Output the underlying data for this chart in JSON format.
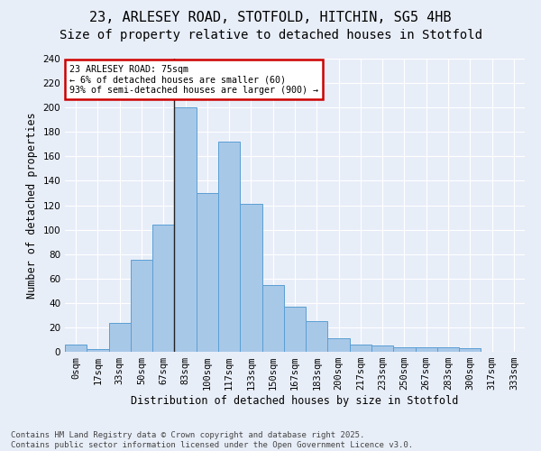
{
  "title_line1": "23, ARLESEY ROAD, STOTFOLD, HITCHIN, SG5 4HB",
  "title_line2": "Size of property relative to detached houses in Stotfold",
  "xlabel": "Distribution of detached houses by size in Stotfold",
  "ylabel": "Number of detached properties",
  "bar_color": "#a8c8e8",
  "bar_edge_color": "#5a9fd4",
  "background_color": "#e8eef8",
  "annotation_title": "23 ARLESEY ROAD: 75sqm",
  "annotation_line2": "← 6% of detached houses are smaller (60)",
  "annotation_line3": "93% of semi-detached houses are larger (900) →",
  "annotation_box_color": "#ffffff",
  "annotation_border_color": "#cc0000",
  "vline_x_idx": 4.5,
  "footer": "Contains HM Land Registry data © Crown copyright and database right 2025.\nContains public sector information licensed under the Open Government Licence v3.0.",
  "categories": [
    "0sqm",
    "17sqm",
    "33sqm",
    "50sqm",
    "67sqm",
    "83sqm",
    "100sqm",
    "117sqm",
    "133sqm",
    "150sqm",
    "167sqm",
    "183sqm",
    "200sqm",
    "217sqm",
    "233sqm",
    "250sqm",
    "267sqm",
    "283sqm",
    "300sqm",
    "317sqm",
    "333sqm"
  ],
  "values": [
    6,
    2,
    24,
    75,
    104,
    200,
    130,
    172,
    121,
    55,
    37,
    25,
    11,
    6,
    5,
    4,
    4,
    4,
    3,
    0,
    0
  ],
  "ylim": [
    0,
    240
  ],
  "yticks": [
    0,
    20,
    40,
    60,
    80,
    100,
    120,
    140,
    160,
    180,
    200,
    220,
    240
  ],
  "grid_color": "#ffffff",
  "title_fontsize": 11,
  "subtitle_fontsize": 10,
  "axis_label_fontsize": 8.5,
  "tick_fontsize": 7.5,
  "footer_fontsize": 6.5
}
